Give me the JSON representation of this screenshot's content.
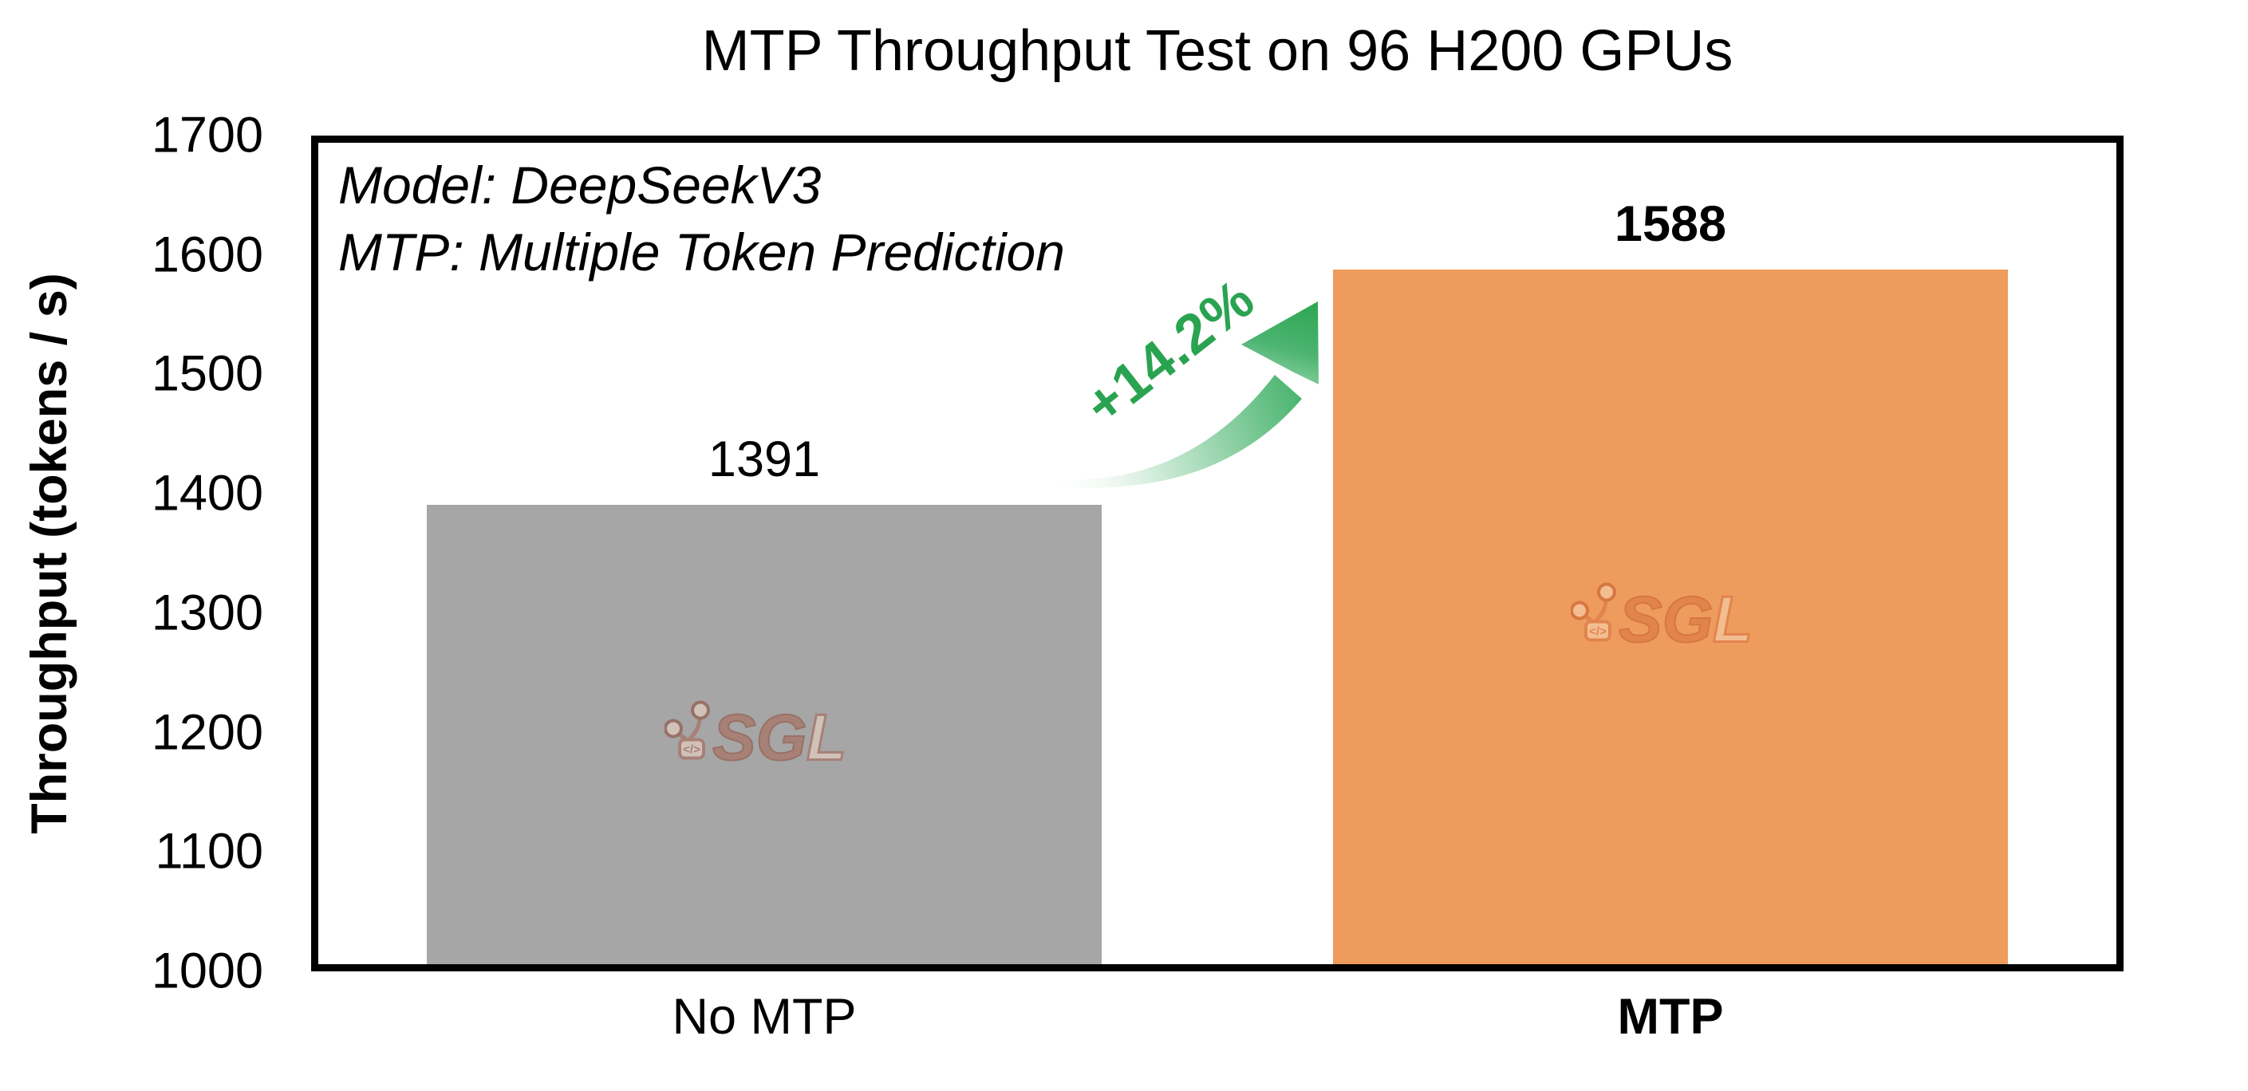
{
  "chart_data": {
    "type": "bar",
    "title": "MTP Throughput Test on 96 H200 GPUs",
    "ylabel": "Throughput (tokens / s)",
    "xlabel": "",
    "ylim": [
      1000,
      1700
    ],
    "ytick_step": 100,
    "grid": false,
    "legend": false,
    "categories": [
      "No MTP",
      "MTP"
    ],
    "values": [
      1391,
      1588
    ],
    "emphasized": [
      false,
      true
    ],
    "bar_colors": [
      "#a6a6a6",
      "#ee9b5e"
    ],
    "annotations": {
      "note_lines": [
        "Model: DeepSeekV3",
        "MTP: Multiple Token Prediction"
      ],
      "delta_label": "+14.2%",
      "delta_color": "#2aa351"
    }
  },
  "watermark": {
    "label": "SGL",
    "icon": "sglang-logo",
    "code_glyph": "</>",
    "palettes": [
      {
        "main": "#a87a6e",
        "stroke": "#96685c",
        "light": "#d9c8bd"
      },
      {
        "main": "#e0814b",
        "stroke": "#d4713a",
        "light": "#f5c49c"
      }
    ]
  },
  "colors": {
    "accent_green": "#2aa351",
    "frame": "#000000",
    "background": "#ffffff"
  }
}
